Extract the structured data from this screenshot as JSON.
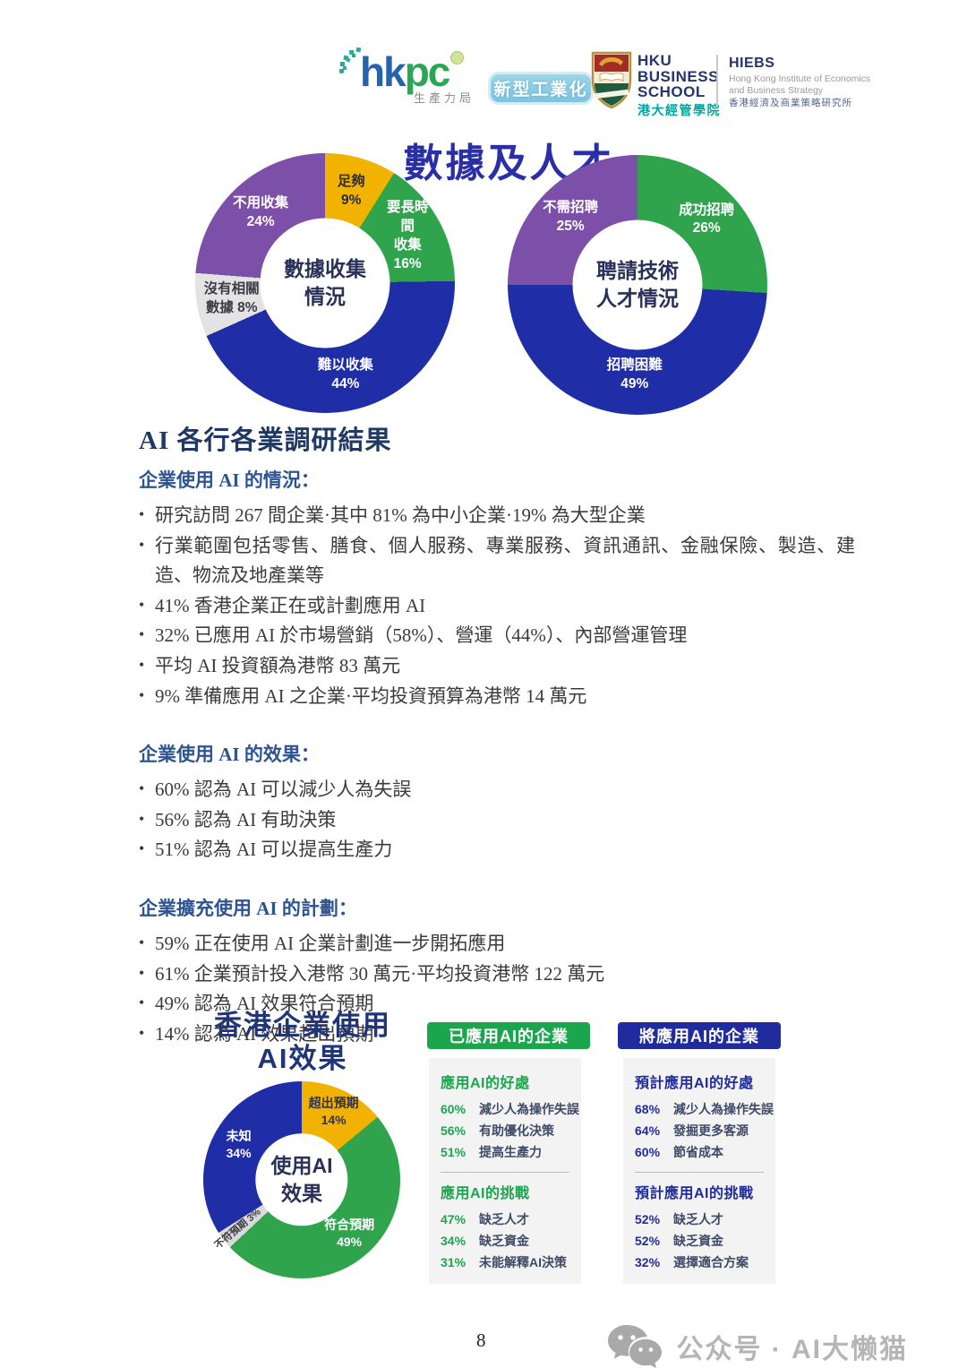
{
  "header": {
    "hkpc": {
      "word_hk": "hk",
      "word_pc": "pc",
      "subtitle": "生產力局"
    },
    "industry_badge": "新型工業化",
    "hku": {
      "l1": "HKU",
      "l2": "BUSINESS",
      "l3": "SCHOOL",
      "cn": "港大經管學院"
    },
    "hiebs": {
      "title": "HIEBS",
      "en1": "Hong Kong Institute of Economics",
      "en2": "and Business Strategy",
      "cn": "香港經濟及商業策略研究所"
    }
  },
  "page_title": "數據及人才",
  "chart_data": [
    {
      "type": "donut",
      "title": "數據收集情況",
      "center_label": "數據收集\n情況",
      "hole": 0.5,
      "segments": [
        {
          "label": "足夠",
          "value": 9,
          "display": "足夠\n9%",
          "color": "#F2B200",
          "text_color": "#2e2e38"
        },
        {
          "label": "要長時間收集",
          "value": 16,
          "display": "要長時間\n收集\n16%",
          "color": "#2FA44D",
          "text_color": "#ffffff"
        },
        {
          "label": "難以收集",
          "value": 44,
          "display": "難以收集\n44%",
          "color": "#1F2DA6",
          "text_color": "#ffffff"
        },
        {
          "label": "沒有相關數據",
          "value": 8,
          "display": "沒有相關\n數據 8%",
          "color": "#E3E3E3",
          "text_color": "#3c3c46"
        },
        {
          "label": "不用收集",
          "value": 24,
          "display": "不用收集\n24%",
          "color": "#7C4FA9",
          "text_color": "#ffffff"
        }
      ]
    },
    {
      "type": "donut",
      "title": "聘請技術人才情況",
      "center_label": "聘請技術\n人才情況",
      "hole": 0.5,
      "segments": [
        {
          "label": "成功招聘",
          "value": 26,
          "display": "成功招聘\n26%",
          "color": "#2FA44D",
          "text_color": "#ffffff"
        },
        {
          "label": "招聘困難",
          "value": 49,
          "display": "招聘困難\n49%",
          "color": "#1F2DA6",
          "text_color": "#ffffff",
          "label_r": 0.7
        },
        {
          "label": "不需招聘",
          "value": 25,
          "display": "不需招聘\n25%",
          "color": "#7C4FA9",
          "text_color": "#ffffff"
        }
      ]
    },
    {
      "type": "donut",
      "title": "使用AI效果",
      "center_label": "使用AI\n效果",
      "hole": 0.47,
      "segments": [
        {
          "label": "超出預期",
          "value": 14,
          "display": "超出預期\n14%",
          "color": "#F2B200",
          "text_color": "#333347",
          "label_r": 0.76
        },
        {
          "label": "符合預期",
          "value": 49,
          "display": "符合預期\n49%",
          "color": "#2FA44D",
          "text_color": "#ffffff"
        },
        {
          "label": "不符預期",
          "value": 3,
          "display": "不符預期 3%",
          "color": "#D9D9D9",
          "text_color": "#3c3c46",
          "rotate": -40,
          "font_size": 11,
          "label_r": 0.82
        },
        {
          "label": "未知",
          "value": 34,
          "display": "未知\n34%",
          "color": "#1F2DA6",
          "text_color": "#ffffff"
        }
      ]
    }
  ],
  "survey": {
    "heading": "AI 各行各業調研結果",
    "sections": [
      {
        "title": "企業使用 AI 的情況：",
        "bullets": [
          "研究訪問 267 間企業·其中 81% 為中小企業·19% 為大型企業",
          "行業範圍包括零售、膳食、個人服務、專業服務、資訊通訊、金融保險、製造、建造、物流及地產業等",
          "41% 香港企業正在或計劃應用 AI",
          "32% 已應用 AI 於市場營銷（58%）、營運（44%）、內部營運管理",
          "平均 AI 投資額為港幣 83 萬元",
          "9% 準備應用 AI 之企業·平均投資預算為港幣 14 萬元"
        ]
      },
      {
        "title": "企業使用 AI 的效果：",
        "bullets": [
          "60% 認為 AI 可以減少人為失誤",
          "56% 認為 AI 有助決策",
          "51% 認為 AI 可以提高生產力"
        ]
      },
      {
        "title": "企業擴充使用 AI 的計劃：",
        "bullets": [
          "59% 正在使用 AI 企業計劃進一步開拓應用",
          "61% 企業預計投入港幣 30 萬元·平均投資港幣 122 萬元",
          "49% 認為 AI 效果符合預期",
          "14% 認為 AI 效果超出預期"
        ]
      }
    ]
  },
  "bottom": {
    "chart_title_line1": "香港企業使用",
    "chart_title_line2": "AI效果",
    "boxes": [
      {
        "header": "已應用AI的企業",
        "accent": "#1BA64E",
        "sections": [
          {
            "title": "應用AI的好處",
            "items": [
              {
                "pct": "60%",
                "text": "減少人為操作失誤"
              },
              {
                "pct": "56%",
                "text": "有助優化決策"
              },
              {
                "pct": "51%",
                "text": "提高生產力"
              }
            ]
          },
          {
            "title": "應用AI的挑戰",
            "items": [
              {
                "pct": "47%",
                "text": "缺乏人才"
              },
              {
                "pct": "34%",
                "text": "缺乏資金"
              },
              {
                "pct": "31%",
                "text": "未能解釋AI決策"
              }
            ]
          }
        ]
      },
      {
        "header": "將應用AI的企業",
        "accent": "#202C9E",
        "sections": [
          {
            "title": "預計應用AI的好處",
            "items": [
              {
                "pct": "68%",
                "text": "減少人為操作失誤"
              },
              {
                "pct": "64%",
                "text": "發掘更多客源"
              },
              {
                "pct": "60%",
                "text": "節省成本"
              }
            ]
          },
          {
            "title": "預計應用AI的挑戰",
            "items": [
              {
                "pct": "52%",
                "text": "缺乏人才"
              },
              {
                "pct": "52%",
                "text": "缺乏資金"
              },
              {
                "pct": "32%",
                "text": "選擇適合方案"
              }
            ]
          }
        ]
      }
    ]
  },
  "footer": {
    "page_number": "8",
    "watermark": "公众号 · AI大懒猫"
  }
}
